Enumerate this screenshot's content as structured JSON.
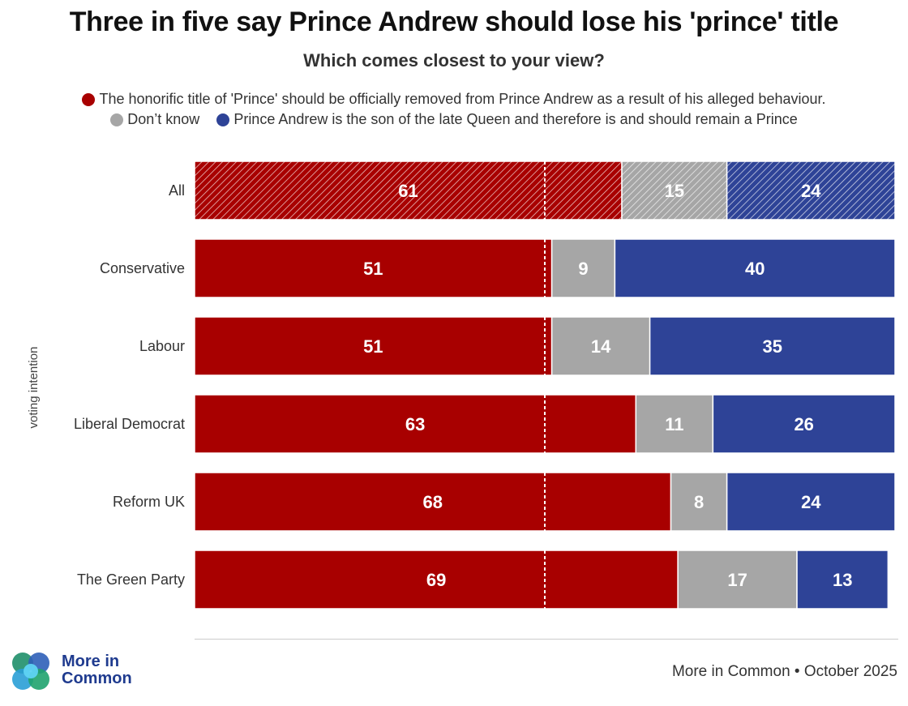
{
  "title": "Three in five say Prince Andrew should lose his 'prince' title",
  "subtitle": "Which comes closest to your view?",
  "legend": [
    {
      "label": "The honorific title of 'Prince' should be officially removed from Prince Andrew as a result of his alleged behaviour.",
      "color": "#a80000"
    },
    {
      "label": "Don’t know",
      "color": "#a6a6a6"
    },
    {
      "label": "Prince Andrew is the son of the late Queen and therefore is and should remain a Prince",
      "color": "#2e4397"
    }
  ],
  "chart_data": {
    "type": "bar",
    "orientation": "horizontal",
    "stacked": true,
    "categories": [
      "All",
      "Conservative",
      "Labour",
      "Liberal Democrat",
      "Reform UK",
      "The Green Party"
    ],
    "series": [
      {
        "name": "The honorific title of 'Prince' should be officially removed from Prince Andrew as a result of his alleged behaviour.",
        "color": "#a80000",
        "values": [
          61,
          51,
          51,
          63,
          68,
          69
        ]
      },
      {
        "name": "Don’t know",
        "color": "#a6a6a6",
        "values": [
          15,
          9,
          14,
          11,
          8,
          17
        ]
      },
      {
        "name": "Prince Andrew is the son of the late Queen and therefore is and should remain a Prince",
        "color": "#2e4397",
        "values": [
          24,
          40,
          35,
          26,
          24,
          13
        ]
      }
    ],
    "hatched_categories": [
      "All"
    ],
    "reference_line": 50,
    "xlim": [
      0,
      100
    ],
    "ylabel": "voting intention",
    "ylabel_applies_to": [
      "Conservative",
      "Labour",
      "Liberal Democrat",
      "Reform UK",
      "The Green Party"
    ]
  },
  "footer": {
    "logo_text_line1": "More in",
    "logo_text_line2": "Common",
    "source": "More in Common • October 2025"
  }
}
